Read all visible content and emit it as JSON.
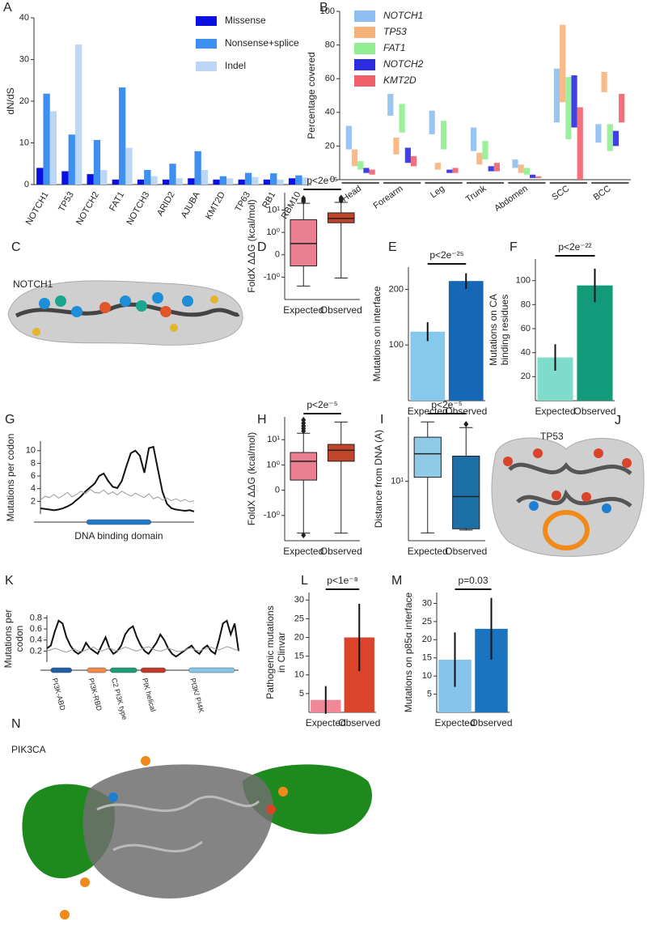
{
  "chart_data": [
    {
      "panel": "A",
      "type": "grouped_bar",
      "ylabel": "dN/dS",
      "categories": [
        "NOTCH1",
        "TP53",
        "NOTCH2",
        "FAT1",
        "NOTCH3",
        "ARID2",
        "AJUBA",
        "KMT2D",
        "TP63",
        "RB1",
        "RBM10"
      ],
      "series": [
        {
          "name": "Missense",
          "color": "#0a10e0",
          "values": [
            4,
            3.2,
            2.5,
            1.2,
            1.2,
            1.2,
            1.5,
            1.2,
            1.2,
            1.2,
            1.5
          ]
        },
        {
          "name": "Nonsense+splice",
          "color": "#3d8ff0",
          "values": [
            21.8,
            12,
            10.7,
            23.3,
            3.5,
            5,
            8,
            2,
            2.8,
            2.7,
            2.2
          ]
        },
        {
          "name": "Indel",
          "color": "#bcd6f5",
          "values": [
            17.6,
            33.6,
            3.5,
            8.8,
            2,
            1.5,
            3.5,
            1.5,
            1.8,
            1.2,
            1.7
          ]
        }
      ],
      "ylim": [
        0,
        40
      ],
      "yticks": [
        0,
        10,
        20,
        30,
        40
      ],
      "legend": "top-right"
    },
    {
      "panel": "B",
      "type": "range_bar",
      "ylabel": "Percentage covered",
      "categories": [
        "Head",
        "Forearm",
        "Leg",
        "Trunk",
        "Abdomen",
        "SCC",
        "BCC"
      ],
      "series": [
        {
          "name": "NOTCH1",
          "color": "#8ebff0",
          "values": [
            [
              18,
              32
            ],
            [
              38,
              51
            ],
            [
              27,
              41
            ],
            [
              17,
              31
            ],
            [
              7,
              12
            ],
            [
              34,
              66
            ],
            [
              22,
              33
            ]
          ]
        },
        {
          "name": "TP53",
          "color": "#f7b27a",
          "values": [
            [
              8,
              18
            ],
            [
              15,
              25
            ],
            [
              6,
              10
            ],
            [
              9,
              16
            ],
            [
              4,
              9
            ],
            [
              46,
              92
            ],
            [
              52,
              64
            ]
          ]
        },
        {
          "name": "FAT1",
          "color": "#90ee90",
          "values": [
            [
              6,
              11
            ],
            [
              28,
              45
            ],
            [
              18,
              35
            ],
            [
              12,
              23
            ],
            [
              3,
              7
            ],
            [
              24,
              61
            ],
            [
              17,
              33
            ]
          ]
        },
        {
          "name": "NOTCH2",
          "color": "#2b2be0",
          "values": [
            [
              4,
              7
            ],
            [
              10,
              19
            ],
            [
              4,
              6
            ],
            [
              5,
              8
            ],
            [
              1,
              3
            ],
            [
              31,
              62
            ],
            [
              20,
              29
            ]
          ]
        },
        {
          "name": "KMT2D",
          "color": "#f0606a",
          "values": [
            [
              3,
              6
            ],
            [
              8,
              14
            ],
            [
              4,
              7
            ],
            [
              5,
              10
            ],
            [
              1,
              2
            ],
            [
              0,
              43
            ],
            [
              34,
              51
            ]
          ]
        }
      ],
      "ylim": [
        0,
        100
      ],
      "yticks": [
        0,
        20,
        40,
        60,
        80,
        100
      ],
      "legend": "top-left"
    },
    {
      "panel": "D",
      "type": "box",
      "ylabel": "FoldX ΔΔG (kcal/mol)",
      "annotation": "p<2e⁻⁵",
      "yscale": "symlog",
      "categories": [
        "Expected",
        "Observed"
      ],
      "colors": [
        "#e8808f",
        "#c0452a"
      ],
      "boxes": [
        {
          "whislo": -2.5,
          "q1": -0.5,
          "med": 0.5,
          "q3": 3.7,
          "whishi": 20,
          "fliers": [
            24,
            28,
            33
          ]
        },
        {
          "whislo": -1.1,
          "q1": 2.7,
          "med": 4.2,
          "q3": 7.5,
          "whishi": 22,
          "fliers": [
            26,
            30,
            35
          ]
        }
      ],
      "ylim": [
        -10,
        60
      ],
      "yticks": [
        {
          "value": 10,
          "label": "10¹"
        },
        {
          "value": 1,
          "label": "10⁰"
        },
        0,
        {
          "value": -1,
          "label": "-10⁰"
        }
      ]
    },
    {
      "panel": "E",
      "type": "bar_error",
      "ylabel": "Mutations on interface",
      "annotation": "p<2e⁻²⁵",
      "categories": [
        "Expected",
        "Observed"
      ],
      "colors": [
        "#87c9ec",
        "#1668b4"
      ],
      "values": [
        124,
        215
      ],
      "errors": [
        17,
        14
      ],
      "ylim": [
        0,
        240
      ],
      "yticks": [
        100,
        200
      ]
    },
    {
      "panel": "F",
      "type": "bar_error",
      "ylabel": [
        "Mutations on CA",
        "binding residues"
      ],
      "annotation": "p<2e⁻²²",
      "categories": [
        "Expected",
        "Observed"
      ],
      "colors": [
        "#7fdccb",
        "#139a7a"
      ],
      "values": [
        36,
        96
      ],
      "errors": [
        11,
        14
      ],
      "ylim": [
        0,
        118
      ],
      "yticks": [
        20,
        40,
        60,
        80,
        100
      ]
    },
    {
      "panel": "G",
      "type": "line",
      "ylabel": "Mutations per codon",
      "series": [
        {
          "color": "#111111",
          "values": [
            0.9,
            0.8,
            0.7,
            0.6,
            0.7,
            0.9,
            1.2,
            1.6,
            2.2,
            2.8,
            3.6,
            4.2,
            4.8,
            6,
            6.4,
            5.2,
            4.3,
            4.1,
            5.2,
            7.5,
            9.6,
            10,
            9.2,
            6.5,
            10.4,
            10.6,
            7,
            3.5,
            1.6,
            0.9,
            0.7,
            0.6,
            0.5,
            0.6,
            0.4
          ]
        },
        {
          "color": "#9a9a9a",
          "values": [
            2.2,
            2.8,
            2.6,
            3.1,
            2.5,
            2.9,
            3.4,
            2.7,
            3.1,
            3.6,
            3.2,
            3.9,
            3.4,
            3.3,
            3.8,
            3.1,
            3.5,
            3,
            3.6,
            3.2,
            2.8,
            3.3,
            2.9,
            2.6,
            3.2,
            2.4,
            2.7,
            2.2,
            2.5,
            2.1,
            2.4,
            2,
            2.3,
            1.9,
            2.1
          ]
        }
      ],
      "domains": [
        {
          "name": "DNA binding domain",
          "color": "#1f78c8"
        }
      ],
      "ylim": [
        0,
        11.5
      ],
      "yticks": [
        2,
        4,
        6,
        8,
        10
      ]
    },
    {
      "panel": "H",
      "type": "box",
      "ylabel": "FoldX ΔΔG (kcal/mol)",
      "annotation": "p<2e⁻⁵",
      "yscale": "symlog",
      "categories": [
        "Expected",
        "Observed"
      ],
      "colors": [
        "#e8808f",
        "#c0452a"
      ],
      "boxes": [
        {
          "whislo": -5,
          "q1": 0.4,
          "med": 1.4,
          "q3": 3.1,
          "whishi": 18,
          "fliers": [
            -6,
            22,
            28,
            35,
            45,
            60
          ]
        },
        {
          "whislo": -5,
          "q1": 1.4,
          "med": 3.8,
          "q3": 6.5,
          "whishi": 50,
          "fliers": []
        }
      ],
      "ylim": [
        -10,
        80
      ],
      "yticks": [
        {
          "value": 10,
          "label": "10¹"
        },
        {
          "value": 1,
          "label": "10⁰"
        },
        0,
        {
          "value": -1,
          "label": "-10⁰"
        }
      ]
    },
    {
      "panel": "I",
      "type": "box",
      "ylabel": "Distance from DNA (A)",
      "annotation": "p<2e⁻⁵",
      "yscale": "log",
      "categories": [
        "Expected",
        "Observed"
      ],
      "colors": [
        "#8fcbe8",
        "#1d6fa8"
      ],
      "boxes": [
        {
          "whislo": 3,
          "q1": 11,
          "med": 19,
          "q3": 28,
          "whishi": 40,
          "fliers": []
        },
        {
          "whislo": 3.2,
          "q1": 3.3,
          "med": 7,
          "q3": 18,
          "whishi": 35,
          "fliers": [
            38
          ]
        }
      ],
      "ylim": [
        2.5,
        45
      ],
      "yticks": [
        {
          "value": 10,
          "label": "10¹"
        }
      ]
    },
    {
      "panel": "K",
      "type": "line",
      "ylabel": [
        "Mutations per",
        "codon"
      ],
      "series": [
        {
          "color": "#111111",
          "values": [
            0.25,
            0.3,
            0.55,
            0.75,
            0.7,
            0.45,
            0.3,
            0.2,
            0.15,
            0.2,
            0.35,
            0.25,
            0.2,
            0.15,
            0.3,
            0.45,
            0.25,
            0.15,
            0.2,
            0.3,
            0.5,
            0.6,
            0.65,
            0.45,
            0.3,
            0.2,
            0.15,
            0.25,
            0.35,
            0.5,
            0.4,
            0.25,
            0.15,
            0.1,
            0.15,
            0.2,
            0.25,
            0.3,
            0.2,
            0.15,
            0.25,
            0.3,
            0.2,
            0.15,
            0.4,
            0.7,
            0.75,
            0.5,
            0.7,
            0.2
          ]
        },
        {
          "color": "#9a9a9a",
          "values": [
            0.2,
            0.22,
            0.25,
            0.23,
            0.2,
            0.18,
            0.21,
            0.24,
            0.2,
            0.19,
            0.22,
            0.25,
            0.27,
            0.22,
            0.2,
            0.23,
            0.26,
            0.22,
            0.2,
            0.24,
            0.27,
            0.25,
            0.22,
            0.2,
            0.23,
            0.26,
            0.28,
            0.24,
            0.21,
            0.2,
            0.22,
            0.25,
            0.23,
            0.2,
            0.19,
            0.21,
            0.24,
            0.26,
            0.22,
            0.2,
            0.23,
            0.25,
            0.27,
            0.24,
            0.22,
            0.25,
            0.28,
            0.26,
            0.23,
            0.21
          ]
        }
      ],
      "domains": [
        {
          "name": "PI3K-ABD",
          "color": "#1f5fa6"
        },
        {
          "name": "PI3K-RBD",
          "color": "#f08a4b"
        },
        {
          "name": "C2 PI3K type",
          "color": "#1b9e77"
        },
        {
          "name": "PIK helical",
          "color": "#c0392b"
        },
        {
          "name": "PI3K/ PI4K",
          "color": "#87c5e8"
        }
      ],
      "ylim": [
        0,
        0.85
      ],
      "yticks": [
        0.2,
        0.4,
        0.6,
        0.8
      ]
    },
    {
      "panel": "L",
      "type": "bar_error",
      "ylabel": [
        "Pathogenic mutations",
        "in Clinvar"
      ],
      "annotation": "p<1e⁻⁸",
      "categories": [
        "Expected",
        "Observed"
      ],
      "colors": [
        "#f08898",
        "#d9442a"
      ],
      "values": [
        3.3,
        20
      ],
      "errors": [
        3.7,
        9
      ],
      "ylim": [
        0,
        32
      ],
      "yticks": [
        5,
        10,
        15,
        20,
        25,
        30
      ]
    },
    {
      "panel": "M",
      "type": "bar_error",
      "ylabel": "Mutations on p85α interface",
      "annotation": "p=0.03",
      "categories": [
        "Expected",
        "Observed"
      ],
      "colors": [
        "#86c4ec",
        "#1a74c0"
      ],
      "values": [
        14.5,
        23
      ],
      "errors": [
        7.5,
        8.5
      ],
      "ylim": [
        0,
        33
      ],
      "yticks": [
        5,
        10,
        15,
        20,
        25,
        30
      ]
    }
  ],
  "structures": [
    {
      "panel": "C",
      "label": "NOTCH1"
    },
    {
      "panel": "J",
      "label": "TP53"
    },
    {
      "panel": "N",
      "label": "PIK3CA"
    }
  ]
}
